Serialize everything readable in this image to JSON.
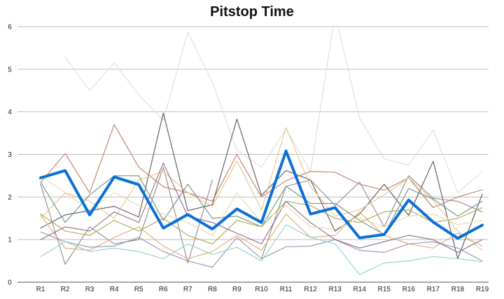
{
  "chart_data": {
    "type": "line",
    "title": "Pitstop Time",
    "xlabel": "",
    "ylabel": "",
    "categories": [
      "R1",
      "R2",
      "R3",
      "R4",
      "R5",
      "R6",
      "R7",
      "R8",
      "R9",
      "R10",
      "R11",
      "R12",
      "R13",
      "R14",
      "R15",
      "R16",
      "R17",
      "R18",
      "R19"
    ],
    "yticks": [
      0,
      1,
      2,
      3,
      4,
      5,
      6
    ],
    "ylim": [
      0,
      6
    ],
    "grid": "horizontal",
    "legend": "none",
    "series": [
      {
        "color": "#0b6fd8",
        "highlight": true,
        "values": [
          2.45,
          2.62,
          1.58,
          2.47,
          2.29,
          1.27,
          1.59,
          1.25,
          1.72,
          1.4,
          3.08,
          1.6,
          1.75,
          1.04,
          1.12,
          1.93,
          1.41,
          1.03,
          1.34
        ]
      },
      {
        "color": "#dcdcdc",
        "values": [
          null,
          5.28,
          4.5,
          5.15,
          4.4,
          3.8,
          5.87,
          4.7,
          3.1,
          2.7,
          3.6,
          2.6,
          6.3,
          3.85,
          2.9,
          2.75,
          3.57,
          2.1,
          2.6
        ]
      },
      {
        "color": "#555555",
        "values": [
          1.27,
          1.58,
          1.68,
          1.78,
          1.53,
          3.97,
          1.68,
          1.82,
          3.83,
          2.04,
          2.62,
          2.4,
          1.2,
          1.6,
          2.3,
          1.57,
          2.84,
          0.55,
          2.07
        ]
      },
      {
        "color": "#c8776a",
        "values": [
          2.34,
          3.02,
          2.1,
          3.7,
          2.7,
          2.24,
          2.1,
          1.9,
          3.0,
          2.0,
          2.38,
          2.6,
          2.58,
          2.3,
          2.16,
          2.45,
          1.75,
          2.0,
          2.17
        ]
      },
      {
        "color": "#8a8a8a",
        "values": [
          2.3,
          0.42,
          1.3,
          0.9,
          1.0,
          2.7,
          0.45,
          2.4,
          null,
          0.55,
          2.25,
          2.4,
          1.8,
          2.35,
          1.3,
          2.5,
          1.97,
          1.9,
          1.65
        ]
      },
      {
        "color": "#e5c48a",
        "values": [
          1.5,
          2.1,
          1.9,
          1.5,
          2.4,
          2.6,
          2.1,
          1.78,
          2.85,
          1.7,
          3.63,
          2.25,
          1.55,
          1.7,
          2.05,
          2.45,
          1.92,
          1.2,
          0.75
        ]
      },
      {
        "color": "#6d8f8a",
        "values": [
          2.35,
          1.4,
          2.05,
          2.5,
          2.5,
          1.45,
          2.3,
          1.5,
          1.55,
          1.3,
          2.25,
          1.85,
          1.85,
          1.45,
          1.12,
          2.2,
          1.95,
          1.55,
          1.9
        ]
      },
      {
        "color": "#e3a87a",
        "values": [
          1.58,
          0.8,
          0.75,
          1.05,
          1.3,
          0.85,
          0.55,
          0.72,
          1.1,
          0.75,
          1.6,
          1.05,
          1.1,
          1.65,
          1.1,
          0.9,
          0.8,
          1.15,
          0.85
        ]
      },
      {
        "color": "#9a8fb0",
        "values": [
          1.18,
          0.95,
          0.82,
          0.85,
          1.05,
          0.72,
          0.5,
          0.35,
          1.05,
          0.55,
          0.83,
          0.85,
          1.0,
          0.75,
          0.7,
          0.9,
          0.95,
          0.8,
          0.5
        ]
      },
      {
        "color": "#8fd0c6",
        "values": [
          0.6,
          0.95,
          0.72,
          0.8,
          0.72,
          0.55,
          0.9,
          0.65,
          0.82,
          0.5,
          1.35,
          1.05,
          0.9,
          0.18,
          0.45,
          0.5,
          0.6,
          0.55,
          0.48
        ]
      },
      {
        "color": "#a8a84c",
        "values": [
          1.6,
          1.2,
          1.1,
          1.45,
          1.2,
          1.5,
          1.1,
          0.9,
          1.45,
          1.3,
          1.9,
          1.8,
          1.5,
          1.4,
          1.65,
          1.7,
          1.4,
          1.5,
          1.75
        ]
      },
      {
        "color": "#8c6b86",
        "values": [
          1.0,
          1.3,
          1.2,
          1.65,
          1.4,
          2.8,
          1.55,
          1.4,
          1.15,
          0.9,
          1.9,
          1.4,
          1.0,
          0.8,
          0.95,
          1.1,
          1.0,
          0.7,
          1.0
        ]
      },
      {
        "color": "#e7d8b0",
        "values": [
          2.5,
          2.1,
          1.7,
          2.1,
          1.8,
          1.6,
          1.4,
          1.1,
          2.1,
          1.4,
          1.8,
          1.3,
          1.25,
          1.5,
          1.3,
          1.55,
          1.6,
          1.35,
          1.45
        ]
      }
    ]
  }
}
